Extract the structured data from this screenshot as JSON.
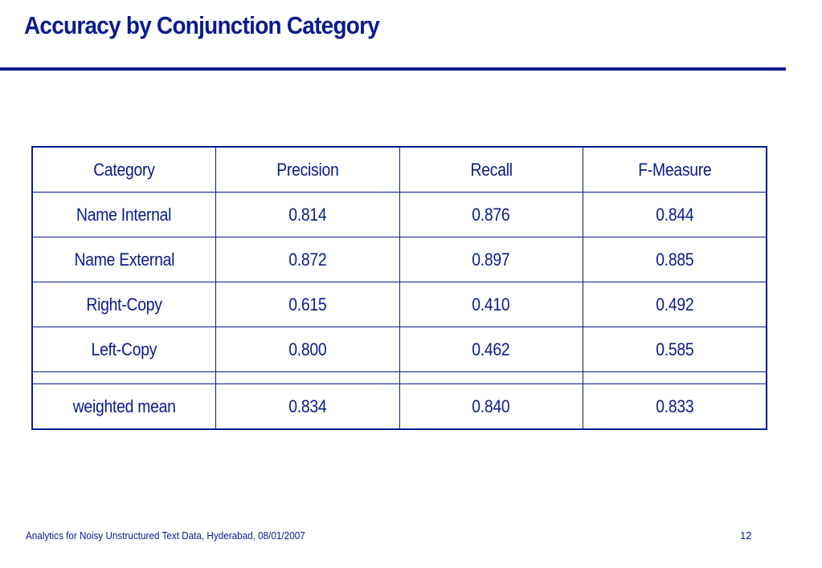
{
  "slide": {
    "title": "Accuracy by Conjunction Category",
    "footer": "Analytics for Noisy Unstructured Text Data, Hyderabad, 08/01/2007",
    "page_number": "12"
  },
  "table": {
    "headers": [
      "Category",
      "Precision",
      "Recall",
      "F-Measure"
    ],
    "rows": [
      [
        "Name Internal",
        "0.814",
        "0.876",
        "0.844"
      ],
      [
        "Name External",
        "0.872",
        "0.897",
        "0.885"
      ],
      [
        "Right-Copy",
        "0.615",
        "0.410",
        "0.492"
      ],
      [
        "Left-Copy",
        "0.800",
        "0.462",
        "0.585"
      ]
    ],
    "summary": [
      "weighted mean",
      "0.834",
      "0.840",
      "0.833"
    ]
  },
  "colors": {
    "text": "#0a1a8f",
    "rule": "#0a1a8f",
    "background": "#ffffff"
  }
}
